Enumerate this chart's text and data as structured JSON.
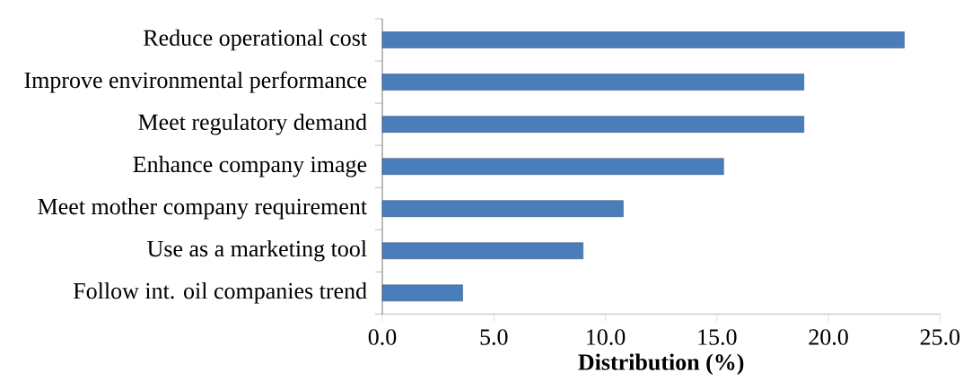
{
  "chart_data": {
    "type": "bar",
    "orientation": "horizontal",
    "xlabel": "Distribution (%)",
    "categories": [
      "Reduce operational cost",
      "Improve environmental performance",
      "Meet regulatory demand",
      "Enhance company image",
      "Meet mother company requirement",
      "Use as a marketing tool",
      "Follow int. oil companies trend"
    ],
    "values": [
      23.4,
      18.9,
      18.9,
      15.3,
      10.8,
      9.0,
      3.6
    ],
    "color": "#4a7ebb",
    "xlim": [
      0,
      25
    ],
    "xticks": [
      {
        "value": 0,
        "label": "0.0"
      },
      {
        "value": 5,
        "label": "5.0"
      },
      {
        "value": 10,
        "label": "10.0"
      },
      {
        "value": 15,
        "label": "15.0"
      },
      {
        "value": 20,
        "label": "20.0"
      },
      {
        "value": 25,
        "label": "25.0"
      }
    ],
    "grid": false
  }
}
